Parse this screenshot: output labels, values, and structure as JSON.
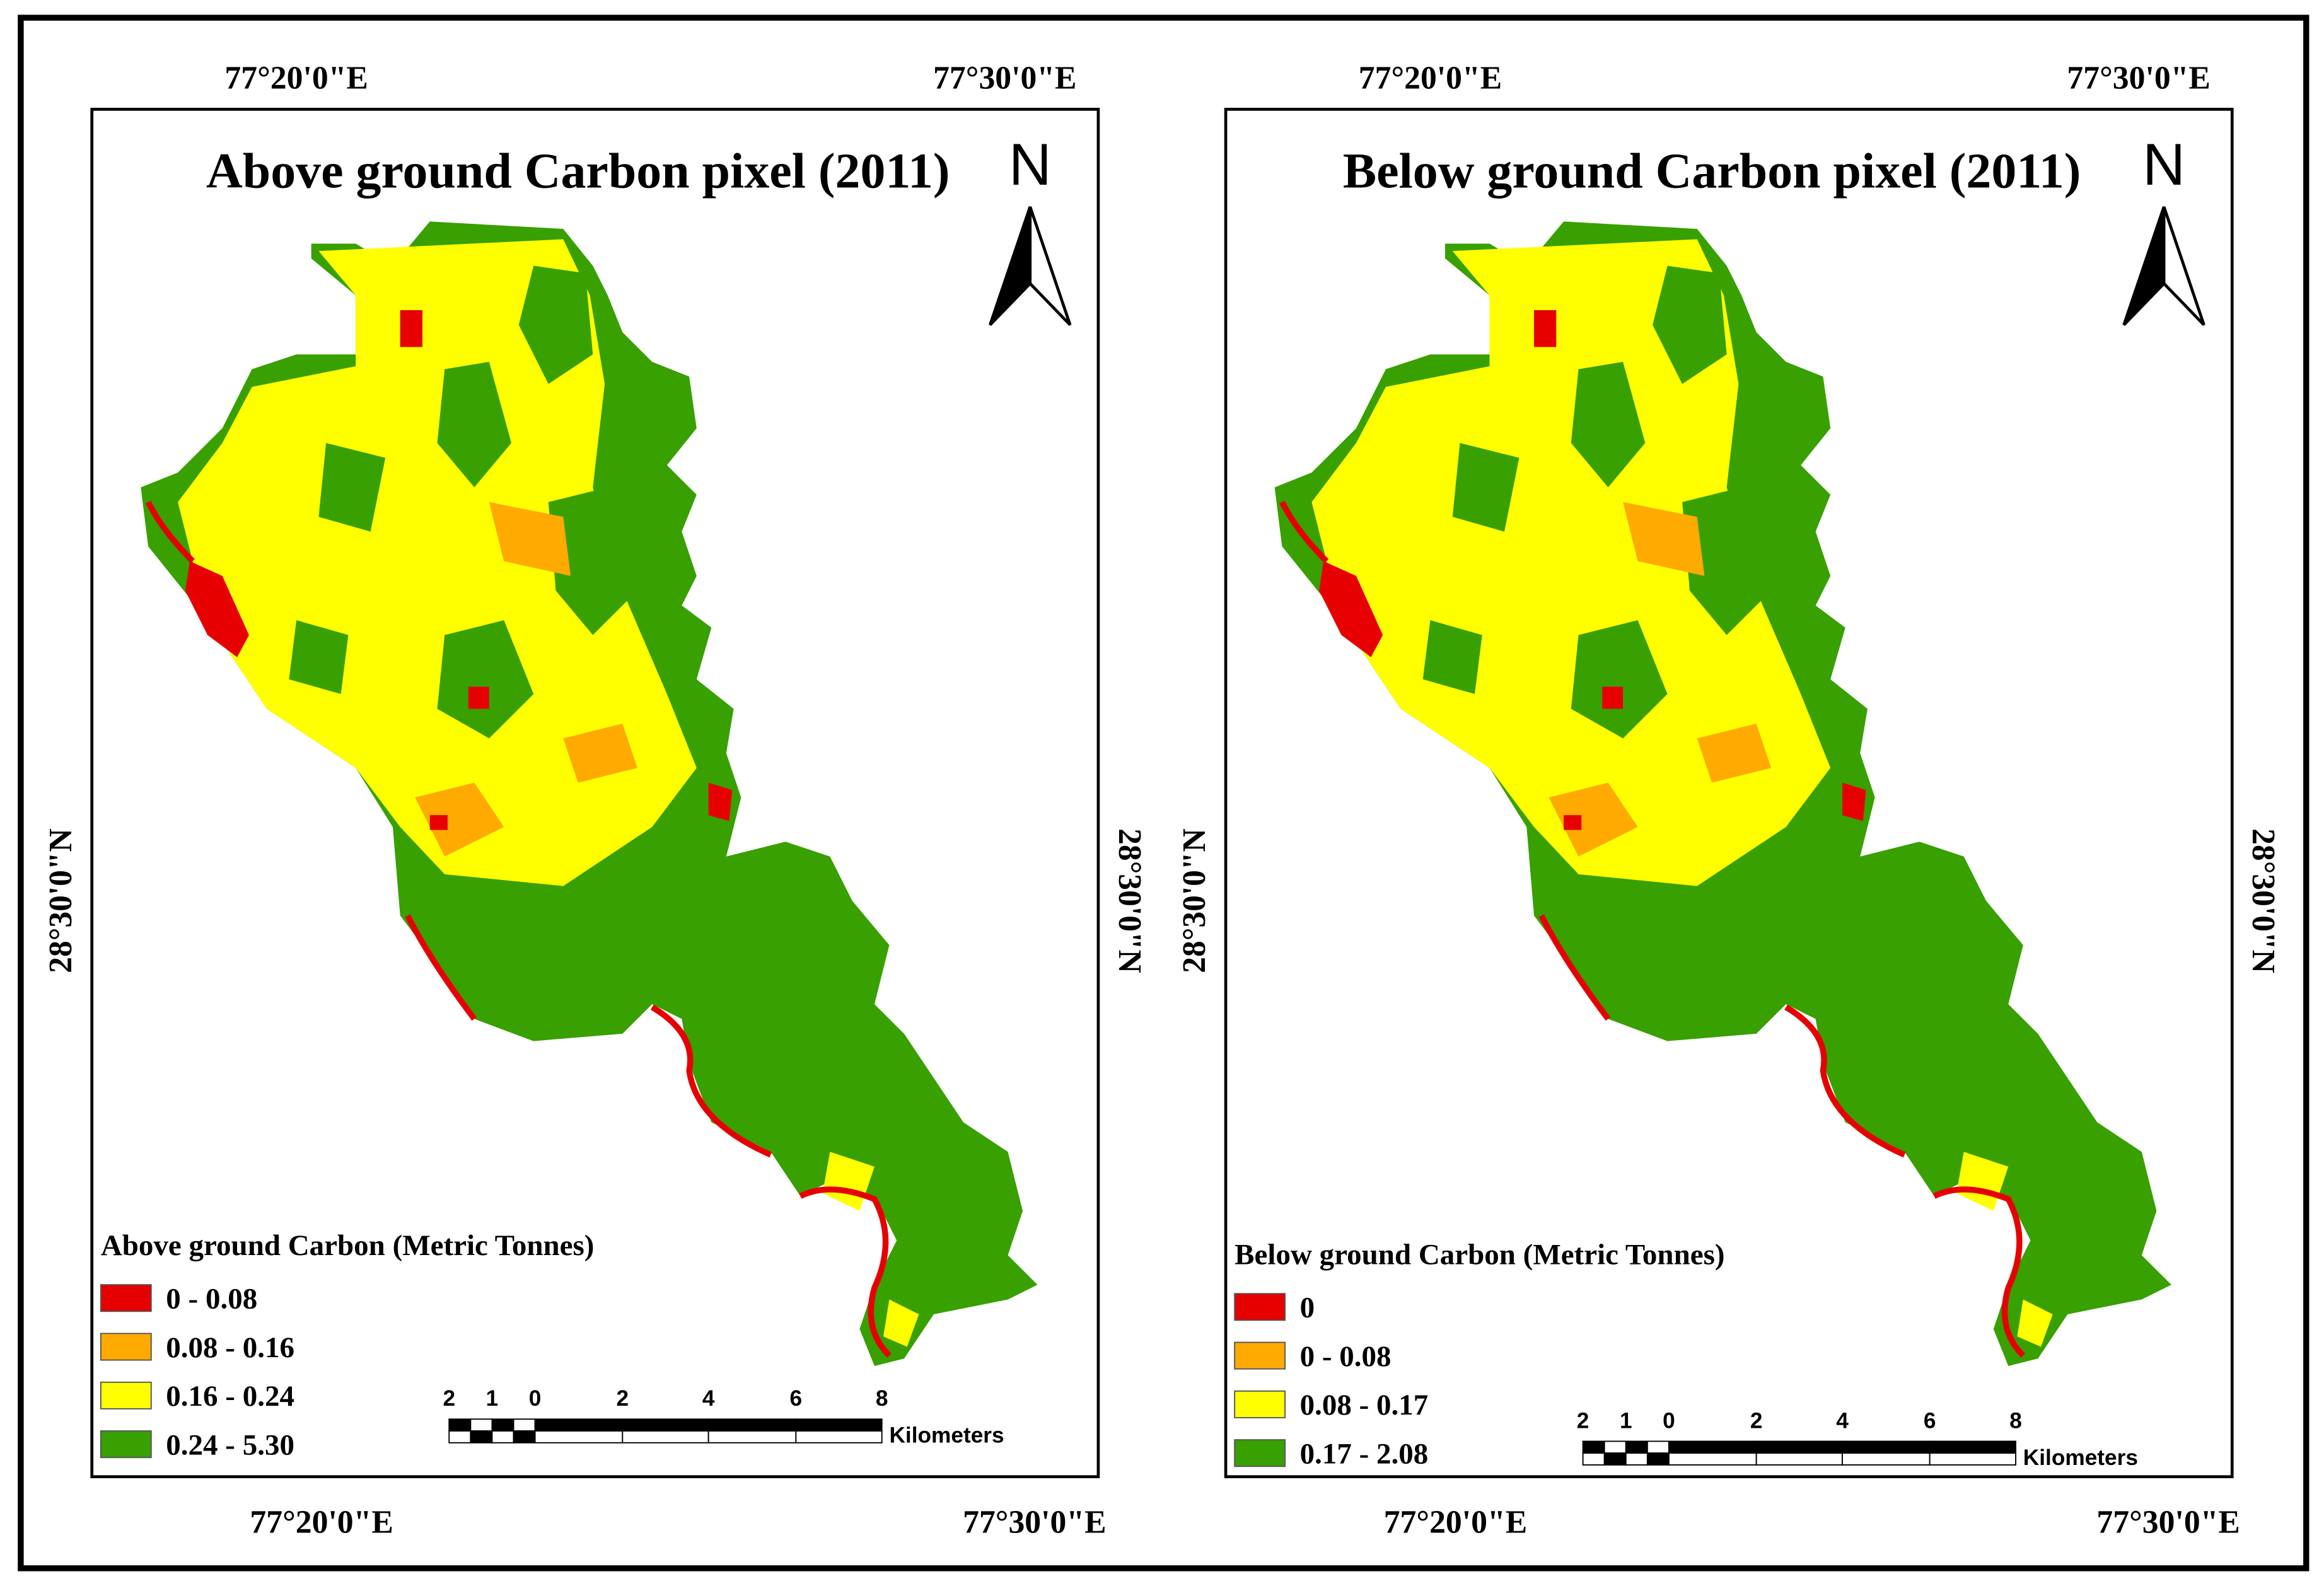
{
  "maps": [
    {
      "title": "Above ground Carbon pixel (2011)",
      "top_labels": [
        "77°20'0\"E",
        "77°30'0\"E"
      ],
      "bottom_labels": [
        "77°20'0\"E",
        "77°30'0\"E"
      ],
      "left_label": "28°30'0\"N",
      "right_label": "28°30'0\"N",
      "north": "N",
      "legend": {
        "title": "Above ground Carbon (Metric Tonnes)",
        "items": [
          {
            "label": "0 - 0.08",
            "color": "#e60000"
          },
          {
            "label": "0.08 - 0.16",
            "color": "#ffaa00"
          },
          {
            "label": "0.16 - 0.24",
            "color": "#ffff00"
          },
          {
            "label": "0.24 - 5.30",
            "color": "#38a000"
          }
        ]
      },
      "scale": {
        "ticks": [
          "2",
          "1",
          "0",
          "2",
          "4",
          "6",
          "8"
        ],
        "unit": "Kilometers"
      }
    },
    {
      "title": "Below ground Carbon pixel (2011)",
      "top_labels": [
        "77°20'0\"E",
        "77°30'0\"E"
      ],
      "bottom_labels": [
        "77°20'0\"E",
        "77°30'0\"E"
      ],
      "left_label": "28°30'0\"N",
      "right_label": "28°30'0\"N",
      "north": "N",
      "legend": {
        "title": "Below ground Carbon (Metric Tonnes)",
        "items": [
          {
            "label": "0",
            "color": "#e60000"
          },
          {
            "label": "0 - 0.08",
            "color": "#ffaa00"
          },
          {
            "label": "0.08 - 0.17",
            "color": "#ffff00"
          },
          {
            "label": "0.17 - 2.08",
            "color": "#38a000"
          }
        ]
      },
      "scale": {
        "ticks": [
          "2",
          "1",
          "0",
          "2",
          "4",
          "6",
          "8"
        ],
        "unit": "Kilometers"
      }
    }
  ]
}
